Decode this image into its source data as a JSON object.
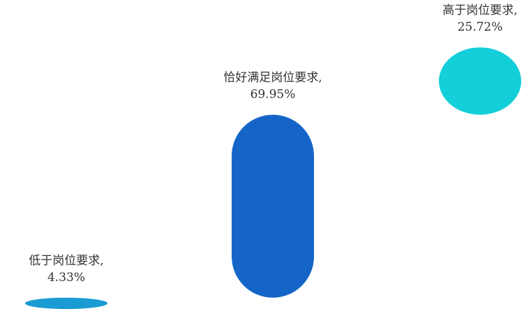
{
  "chart_data": {
    "type": "bar",
    "categories": [
      "低于岗位要求",
      "恰好满足岗位要求",
      "高于岗位要求"
    ],
    "values": [
      4.33,
      69.95,
      25.72
    ],
    "value_labels": [
      "4.33%",
      "69.95%",
      "25.72%"
    ],
    "label_suffix": ",",
    "colors": [
      "#1a9bd4",
      "#1565c8",
      "#13cfd9"
    ],
    "ylim": [
      0,
      100
    ],
    "grid": false,
    "legend": "none"
  }
}
